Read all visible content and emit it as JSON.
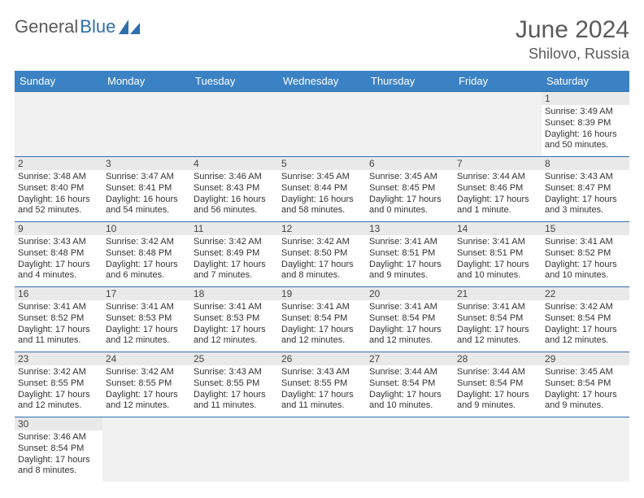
{
  "brand": {
    "general": "General",
    "blue": "Blue"
  },
  "title": "June 2024",
  "location": "Shilovo, Russia",
  "colors": {
    "header_bg": "#3b82c4",
    "header_text": "#ffffff",
    "rule": "#2f6fae",
    "blank_bg": "#f1f1f1",
    "daynum_bg": "#e9e9e9",
    "text": "#333333",
    "title_text": "#5a5a5a"
  },
  "weekdays": [
    "Sunday",
    "Monday",
    "Tuesday",
    "Wednesday",
    "Thursday",
    "Friday",
    "Saturday"
  ],
  "layout": {
    "first_weekday_index": 6,
    "days_in_month": 30
  },
  "labels": {
    "sunrise": "Sunrise:",
    "sunset": "Sunset:",
    "daylight_prefix": "Daylight:"
  },
  "days": {
    "1": {
      "sunrise": "3:49 AM",
      "sunset": "8:39 PM",
      "daylight": "16 hours and 50 minutes."
    },
    "2": {
      "sunrise": "3:48 AM",
      "sunset": "8:40 PM",
      "daylight": "16 hours and 52 minutes."
    },
    "3": {
      "sunrise": "3:47 AM",
      "sunset": "8:41 PM",
      "daylight": "16 hours and 54 minutes."
    },
    "4": {
      "sunrise": "3:46 AM",
      "sunset": "8:43 PM",
      "daylight": "16 hours and 56 minutes."
    },
    "5": {
      "sunrise": "3:45 AM",
      "sunset": "8:44 PM",
      "daylight": "16 hours and 58 minutes."
    },
    "6": {
      "sunrise": "3:45 AM",
      "sunset": "8:45 PM",
      "daylight": "17 hours and 0 minutes."
    },
    "7": {
      "sunrise": "3:44 AM",
      "sunset": "8:46 PM",
      "daylight": "17 hours and 1 minute."
    },
    "8": {
      "sunrise": "3:43 AM",
      "sunset": "8:47 PM",
      "daylight": "17 hours and 3 minutes."
    },
    "9": {
      "sunrise": "3:43 AM",
      "sunset": "8:48 PM",
      "daylight": "17 hours and 4 minutes."
    },
    "10": {
      "sunrise": "3:42 AM",
      "sunset": "8:48 PM",
      "daylight": "17 hours and 6 minutes."
    },
    "11": {
      "sunrise": "3:42 AM",
      "sunset": "8:49 PM",
      "daylight": "17 hours and 7 minutes."
    },
    "12": {
      "sunrise": "3:42 AM",
      "sunset": "8:50 PM",
      "daylight": "17 hours and 8 minutes."
    },
    "13": {
      "sunrise": "3:41 AM",
      "sunset": "8:51 PM",
      "daylight": "17 hours and 9 minutes."
    },
    "14": {
      "sunrise": "3:41 AM",
      "sunset": "8:51 PM",
      "daylight": "17 hours and 10 minutes."
    },
    "15": {
      "sunrise": "3:41 AM",
      "sunset": "8:52 PM",
      "daylight": "17 hours and 10 minutes."
    },
    "16": {
      "sunrise": "3:41 AM",
      "sunset": "8:52 PM",
      "daylight": "17 hours and 11 minutes."
    },
    "17": {
      "sunrise": "3:41 AM",
      "sunset": "8:53 PM",
      "daylight": "17 hours and 12 minutes."
    },
    "18": {
      "sunrise": "3:41 AM",
      "sunset": "8:53 PM",
      "daylight": "17 hours and 12 minutes."
    },
    "19": {
      "sunrise": "3:41 AM",
      "sunset": "8:54 PM",
      "daylight": "17 hours and 12 minutes."
    },
    "20": {
      "sunrise": "3:41 AM",
      "sunset": "8:54 PM",
      "daylight": "17 hours and 12 minutes."
    },
    "21": {
      "sunrise": "3:41 AM",
      "sunset": "8:54 PM",
      "daylight": "17 hours and 12 minutes."
    },
    "22": {
      "sunrise": "3:42 AM",
      "sunset": "8:54 PM",
      "daylight": "17 hours and 12 minutes."
    },
    "23": {
      "sunrise": "3:42 AM",
      "sunset": "8:55 PM",
      "daylight": "17 hours and 12 minutes."
    },
    "24": {
      "sunrise": "3:42 AM",
      "sunset": "8:55 PM",
      "daylight": "17 hours and 12 minutes."
    },
    "25": {
      "sunrise": "3:43 AM",
      "sunset": "8:55 PM",
      "daylight": "17 hours and 11 minutes."
    },
    "26": {
      "sunrise": "3:43 AM",
      "sunset": "8:55 PM",
      "daylight": "17 hours and 11 minutes."
    },
    "27": {
      "sunrise": "3:44 AM",
      "sunset": "8:54 PM",
      "daylight": "17 hours and 10 minutes."
    },
    "28": {
      "sunrise": "3:44 AM",
      "sunset": "8:54 PM",
      "daylight": "17 hours and 9 minutes."
    },
    "29": {
      "sunrise": "3:45 AM",
      "sunset": "8:54 PM",
      "daylight": "17 hours and 9 minutes."
    },
    "30": {
      "sunrise": "3:46 AM",
      "sunset": "8:54 PM",
      "daylight": "17 hours and 8 minutes."
    }
  }
}
